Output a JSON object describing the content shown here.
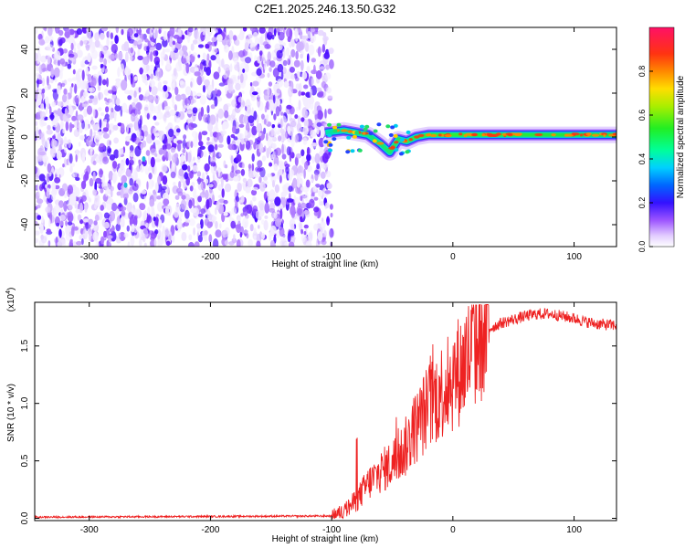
{
  "title": "C2E1.2025.246.13.50.G32",
  "chart_data": [
    {
      "type": "heatmap",
      "title": "C2E1.2025.246.13.50.G32",
      "xlabel": "Height of straight line (km)",
      "ylabel": "Frequency (Hz)",
      "xlim": [
        -345,
        135
      ],
      "ylim": [
        -50,
        50
      ],
      "x_ticks": [
        -300,
        -200,
        -100,
        0,
        100
      ],
      "x_tick_labels": [
        "-300",
        "-200",
        "-100",
        "0",
        "100"
      ],
      "y_ticks": [
        -40,
        -20,
        0,
        20,
        40
      ],
      "y_tick_labels": [
        "-40",
        "-20",
        "0",
        "20",
        "40"
      ],
      "data_region_x": [
        -345,
        -100
      ],
      "ridge": [
        {
          "x": -105,
          "f": 2
        },
        {
          "x": -90,
          "f": 3
        },
        {
          "x": -80,
          "f": 2
        },
        {
          "x": -70,
          "f": 1
        },
        {
          "x": -60,
          "f": -3
        },
        {
          "x": -52,
          "f": -7
        },
        {
          "x": -45,
          "f": -1
        },
        {
          "x": -38,
          "f": -2
        },
        {
          "x": -30,
          "f": 0
        },
        {
          "x": -20,
          "f": 1
        },
        {
          "x": -10,
          "f": 1
        },
        {
          "x": 0,
          "f": 1
        },
        {
          "x": 20,
          "f": 1
        },
        {
          "x": 40,
          "f": 1
        },
        {
          "x": 60,
          "f": 1
        },
        {
          "x": 80,
          "f": 1
        },
        {
          "x": 100,
          "f": 1
        },
        {
          "x": 120,
          "f": 1
        },
        {
          "x": 135,
          "f": 1
        }
      ],
      "colorbar": {
        "label": "Normalized spectral amplitude",
        "range": [
          0,
          1
        ],
        "ticks": [
          0.0,
          0.2,
          0.4,
          0.6,
          0.8
        ],
        "tick_labels": [
          "0.0",
          "0.2",
          "0.4",
          "0.6",
          "0.8"
        ]
      }
    },
    {
      "type": "line",
      "xlabel": "Height of straight line (km)",
      "ylabel": "SNR (10 * v/v)",
      "exponent_label": "(x10",
      "exponent_value": "4",
      "exponent_close": ")",
      "xlim": [
        -345,
        135
      ],
      "ylim": [
        -0.02,
        1.88
      ],
      "x_ticks": [
        -300,
        -200,
        -100,
        0,
        100
      ],
      "x_tick_labels": [
        "-300",
        "-200",
        "-100",
        "0",
        "100"
      ],
      "y_ticks": [
        0.0,
        0.5,
        1.0,
        1.5
      ],
      "y_tick_labels": [
        "0.0",
        "0.5",
        "1.0",
        "1.5"
      ],
      "series": [
        {
          "name": "SNR",
          "color": "#ee2222",
          "x": [
            -345,
            -100,
            -90,
            -80,
            -70,
            -60,
            -50,
            -40,
            -30,
            -20,
            -10,
            0,
            10,
            20,
            30,
            40,
            50,
            60,
            70,
            80,
            90,
            100,
            110,
            120,
            135
          ],
          "y": [
            0.01,
            0.02,
            0.06,
            0.15,
            0.3,
            0.4,
            0.48,
            0.6,
            0.8,
            0.98,
            1.1,
            1.22,
            1.35,
            1.55,
            1.65,
            1.7,
            1.73,
            1.76,
            1.78,
            1.78,
            1.76,
            1.74,
            1.71,
            1.69,
            1.68
          ]
        }
      ]
    }
  ]
}
